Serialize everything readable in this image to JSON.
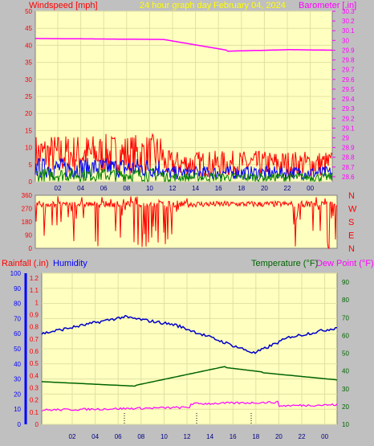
{
  "header": {
    "windspeed_label": "Windspeed [mph]",
    "graph_title": "24 hour graph day",
    "date": "February 04, 2024",
    "barometer_label": "Barometer [.in]"
  },
  "wind_panel": {
    "left_ticks": [
      "0",
      "5",
      "10",
      "15",
      "20",
      "25",
      "30",
      "35",
      "40",
      "45",
      "50"
    ],
    "right_ticks": [
      "28.6",
      "28.7",
      "28.8",
      "28.9",
      "29",
      "29.1",
      "29.2",
      "29.3",
      "29.4",
      "29.5",
      "29.6",
      "29.7",
      "29.8",
      "29.9",
      "30",
      "30.1",
      "30.2",
      "30.3"
    ],
    "hour_ticks": [
      "02",
      "04",
      "06",
      "08",
      "10",
      "12",
      "14",
      "16",
      "18",
      "20",
      "22",
      "00"
    ]
  },
  "direction_panel": {
    "left_ticks": [
      "0",
      "90",
      "180",
      "270",
      "360"
    ],
    "compass": [
      "N",
      "W",
      "S",
      "E",
      "N"
    ]
  },
  "lower_panel": {
    "rainfall_label": "Rainfall (.in)",
    "humidity_label": "Humidity",
    "temperature_label": "Temperature (°F)",
    "dewpoint_label": "Dew Point (°F)",
    "humidity_ticks": [
      "0",
      "10",
      "20",
      "30",
      "40",
      "50",
      "60",
      "70",
      "80",
      "90",
      "100"
    ],
    "rain_ticks": [
      "0",
      "0.1",
      "0.2",
      "0.3",
      "0.4",
      "0.5",
      "0.6",
      "0.7",
      "0.8",
      "0.9",
      "1",
      "1.1",
      "1.2"
    ],
    "temp_ticks": [
      "10",
      "20",
      "30",
      "40",
      "50",
      "60",
      "70",
      "80",
      "90"
    ],
    "hour_ticks": [
      "02",
      "04",
      "06",
      "08",
      "10",
      "12",
      "14",
      "16",
      "18",
      "20",
      "22",
      "00"
    ]
  },
  "colors": {
    "plot_bg": "#ffffc0",
    "frame_bg": "#c0c0c0",
    "wind_gust": "#ff0000",
    "wind_avg": "#0000ff",
    "wind_low": "#008000",
    "barometer": "#ff00ff",
    "humidity": "#0000c8",
    "temperature": "#006400",
    "dewpoint": "#ff00ff",
    "title": "#ffff00"
  }
}
